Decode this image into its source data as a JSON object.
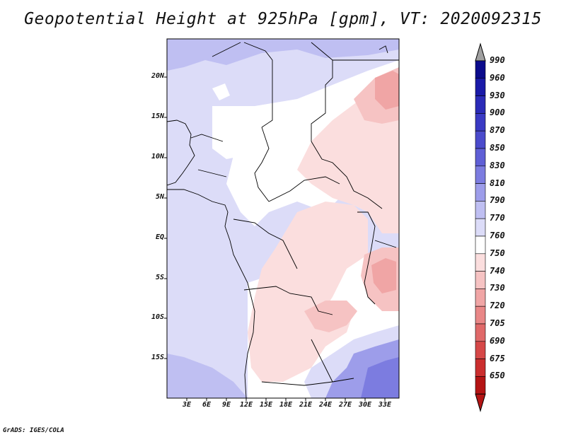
{
  "title": "Geopotential Height at 925hPa [gpm], VT: 2020092315",
  "credit": "GrADS: IGES/COLA",
  "map": {
    "lat_ticks": [
      "20N",
      "15N",
      "10N",
      "5N",
      "EQ",
      "5S",
      "10S",
      "15S"
    ],
    "lon_ticks": [
      "3E",
      "6E",
      "9E",
      "12E",
      "15E",
      "18E",
      "21E",
      "24E",
      "27E",
      "30E",
      "33E"
    ]
  },
  "colorbar": {
    "levels": [
      "990",
      "960",
      "930",
      "900",
      "870",
      "850",
      "830",
      "810",
      "790",
      "770",
      "760",
      "750",
      "740",
      "730",
      "720",
      "705",
      "690",
      "675",
      "650"
    ],
    "colors": [
      "#0b0b8c",
      "#1a1aa8",
      "#2b2bb8",
      "#3a3ac4",
      "#4b4bcc",
      "#5f5fd6",
      "#7c7ce0",
      "#9d9dea",
      "#bfbff2",
      "#dcdcf8",
      "#ffffff",
      "#fbdede",
      "#f6c3c3",
      "#f0a5a5",
      "#e98787",
      "#e06969",
      "#d64848",
      "#cb2e2e",
      "#b41414"
    ]
  }
}
